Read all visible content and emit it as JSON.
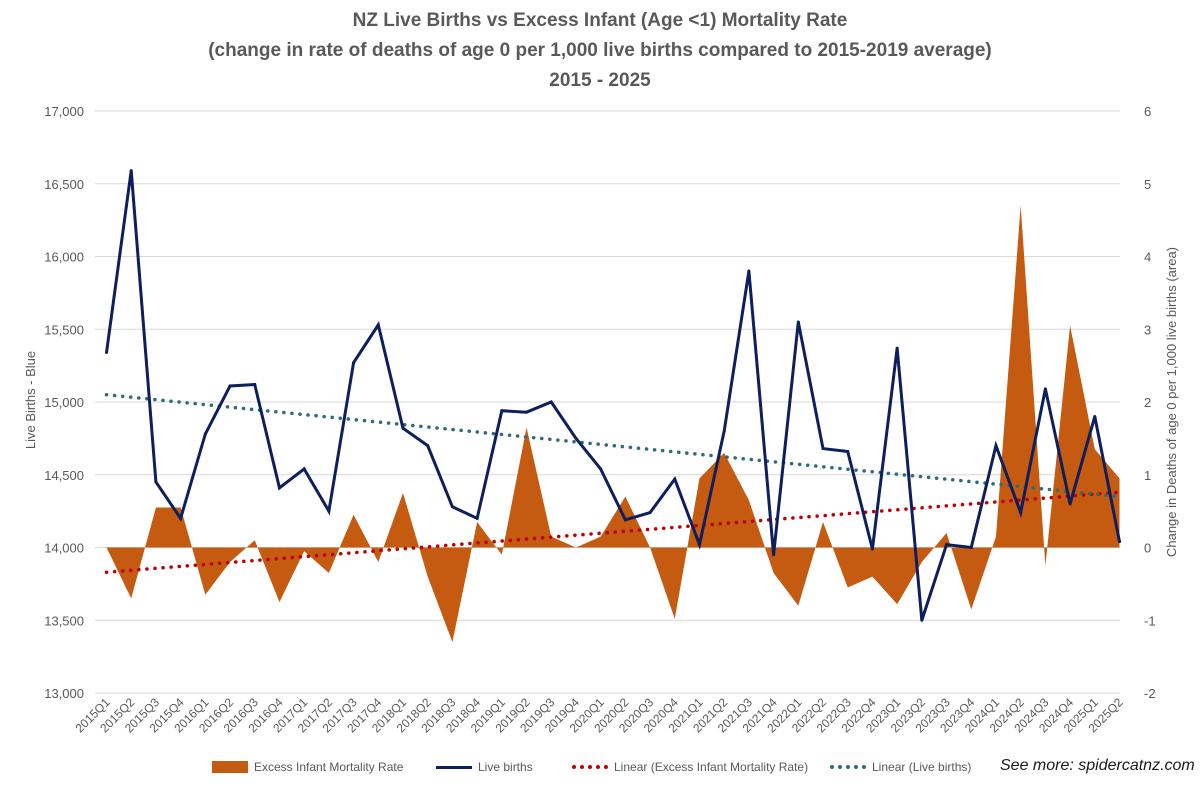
{
  "title_lines": [
    "NZ Live Births vs Excess Infant (Age <1) Mortality Rate",
    "(change in rate of deaths of age 0 per 1,000 live births compared to 2015-2019 average)",
    "2015 - 2025"
  ],
  "credit": "See more: spidercatnz.com",
  "colors": {
    "area": "#C55A11",
    "births_line": "#0D1F5C",
    "trend_area": "#C00000",
    "trend_births": "#2F6B7A",
    "grid": "#D9D9D9"
  },
  "chart_data": {
    "type": "line",
    "categories": [
      "2015Q1",
      "2015Q2",
      "2015Q3",
      "2015Q4",
      "2016Q1",
      "2016Q2",
      "2016Q3",
      "2016Q4",
      "2017Q1",
      "2017Q2",
      "2017Q3",
      "2017Q4",
      "2018Q1",
      "2018Q2",
      "2018Q3",
      "2018Q4",
      "2019Q1",
      "2019Q2",
      "2019Q3",
      "2019Q4",
      "2020Q1",
      "2020Q2",
      "2020Q3",
      "2020Q4",
      "2021Q1",
      "2021Q2",
      "2021Q3",
      "2021Q4",
      "2022Q1",
      "2022Q2",
      "2022Q3",
      "2022Q4",
      "2023Q1",
      "2023Q2",
      "2023Q3",
      "2023Q4",
      "2024Q1",
      "2024Q2",
      "2024Q3",
      "2024Q4",
      "2025Q1",
      "2025Q2"
    ],
    "series": [
      {
        "name": "Excess Infant Mortality Rate",
        "kind": "area",
        "axis": "right",
        "values": [
          0,
          -0.7,
          0.55,
          0.55,
          -0.65,
          -0.2,
          0.1,
          -0.75,
          -0.05,
          -0.35,
          0.45,
          -0.2,
          0.75,
          -0.4,
          -1.3,
          0.35,
          -0.1,
          1.65,
          0.15,
          0,
          0.15,
          0.7,
          0,
          -0.98,
          0.95,
          1.3,
          0.65,
          -0.35,
          -0.8,
          0.35,
          -0.55,
          -0.4,
          -0.78,
          -0.2,
          0.2,
          -0.85,
          0.15,
          4.7,
          -0.25,
          3.05,
          1.35,
          0.95
        ]
      },
      {
        "name": "Live births",
        "kind": "line",
        "axis": "left",
        "values": [
          15340,
          16590,
          14450,
          14200,
          14780,
          15110,
          15120,
          14410,
          14540,
          14250,
          15270,
          15530,
          14820,
          14700,
          14280,
          14200,
          14940,
          14930,
          15000,
          14750,
          14540,
          14190,
          14240,
          14470,
          14020,
          14800,
          15900,
          13950,
          15550,
          14680,
          14660,
          13990,
          15370,
          13500,
          14020,
          14000,
          14700,
          14240,
          15090,
          14300,
          14900,
          14040
        ]
      }
    ],
    "trendlines": [
      {
        "name": "Linear (Excess Infant Mortality Rate)",
        "axis": "right",
        "start": -0.34,
        "end": 0.76
      },
      {
        "name": "Linear (Live births)",
        "axis": "left",
        "start": 15050,
        "end": 14350
      }
    ],
    "y_left": {
      "label": "Live Births - Blue",
      "min": 13000,
      "max": 17000,
      "ticks": [
        "13,000",
        "13,500",
        "14,000",
        "14,500",
        "15,000",
        "15,500",
        "16,000",
        "16,500",
        "17,000"
      ]
    },
    "y_right": {
      "label": "Change in Deaths of age 0 per 1,000 live births (area)",
      "min": -2,
      "max": 6,
      "ticks": [
        "-2",
        "-1",
        "0",
        "1",
        "2",
        "3",
        "4",
        "5",
        "6"
      ]
    },
    "grid": true,
    "legend_position": "bottom"
  }
}
